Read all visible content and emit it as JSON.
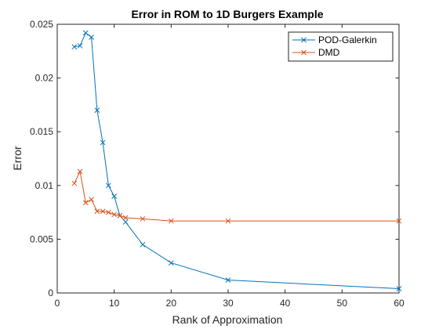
{
  "chart_data": {
    "type": "line",
    "title": "Error in ROM to 1D Burgers Example",
    "xlabel": "Rank of Approximation",
    "ylabel": "Error",
    "xlim": [
      0,
      60
    ],
    "ylim": [
      0,
      0.025
    ],
    "xticks": [
      0,
      10,
      20,
      30,
      40,
      50,
      60
    ],
    "xtick_labels": [
      "0",
      "10",
      "20",
      "30",
      "40",
      "50",
      "60"
    ],
    "yticks": [
      0,
      0.005,
      0.01,
      0.015,
      0.02,
      0.025
    ],
    "ytick_labels": [
      "0",
      "0.005",
      "0.01",
      "0.015",
      "0.02",
      "0.025"
    ],
    "grid": false,
    "legend_position": "top-right",
    "marker": "x",
    "series": [
      {
        "name": "POD-Galerkin",
        "color": "#0072BD",
        "x": [
          3,
          4,
          5,
          6,
          7,
          8,
          9,
          10,
          11,
          12,
          15,
          20,
          30,
          60
        ],
        "y": [
          0.0229,
          0.023,
          0.0242,
          0.0238,
          0.017,
          0.014,
          0.01,
          0.009,
          0.0072,
          0.0066,
          0.0045,
          0.0028,
          0.0012,
          0.0004
        ]
      },
      {
        "name": "DMD",
        "color": "#D95319",
        "x": [
          3,
          4,
          5,
          6,
          7,
          8,
          9,
          10,
          11,
          12,
          15,
          20,
          30,
          60
        ],
        "y": [
          0.0102,
          0.0113,
          0.0084,
          0.0087,
          0.0076,
          0.0076,
          0.0075,
          0.0073,
          0.0072,
          0.007,
          0.0069,
          0.0067,
          0.0067,
          0.0067
        ]
      }
    ]
  }
}
